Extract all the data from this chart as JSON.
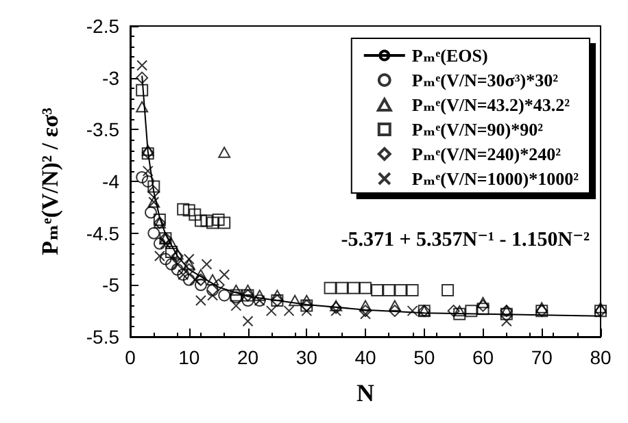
{
  "chart_data": {
    "type": "scatter",
    "xlabel": "N",
    "ylabel": "Pₘᵉ(V/N)² / εσ³",
    "xlim": [
      0,
      80
    ],
    "xticks": [
      0,
      10,
      20,
      30,
      40,
      50,
      60,
      70,
      80
    ],
    "ylim": [
      -5.5,
      -2.5
    ],
    "yticks": [
      -5.5,
      -5,
      -4.5,
      -4,
      -3.5,
      -3,
      -2.5
    ],
    "grid": false,
    "legend": "top right",
    "annotations": [
      "-5.371 + 5.357N⁻¹ - 1.150N⁻²"
    ],
    "series": [
      {
        "name": "Pₘᵉ(EOS)",
        "type": "line",
        "marker": "none",
        "line_style": "solid",
        "color": "#000000",
        "x": [
          2,
          3,
          4,
          5,
          6,
          8,
          10,
          15,
          20,
          30,
          40,
          50,
          60,
          80
        ],
        "values": [
          -2.98,
          -3.71,
          -4.1,
          -4.35,
          -4.51,
          -4.72,
          -4.85,
          -5.02,
          -5.11,
          -5.19,
          -5.24,
          -5.27,
          -5.28,
          -5.3
        ]
      },
      {
        "name": "Pₘᵉ(V/N=30σ³)*30²",
        "marker": "circle",
        "color": "#000000",
        "x": [
          2,
          3,
          3.5,
          4,
          5,
          6,
          7,
          8,
          9,
          10,
          12,
          14,
          16,
          18,
          20,
          22
        ],
        "values": [
          -3.96,
          -4.0,
          -4.3,
          -4.5,
          -4.6,
          -4.75,
          -4.8,
          -4.85,
          -4.9,
          -4.95,
          -5.0,
          -5.05,
          -5.1,
          -5.12,
          -5.15,
          -5.15
        ]
      },
      {
        "name": "Pₘᵉ(V/N=43.2)*43.2²",
        "marker": "triangle",
        "color": "#000000",
        "x": [
          2,
          3,
          4,
          5,
          6,
          7,
          8,
          10,
          12,
          14,
          16,
          18,
          20,
          22,
          25,
          28,
          30,
          35,
          40,
          45,
          50,
          56,
          60,
          64,
          70,
          80
        ],
        "values": [
          -3.28,
          -3.7,
          -4.2,
          -4.4,
          -4.55,
          -4.6,
          -4.7,
          -4.8,
          -4.9,
          -4.95,
          -3.72,
          -5.05,
          -5.05,
          -5.1,
          -5.1,
          -5.15,
          -5.15,
          -5.2,
          -5.2,
          -5.2,
          -5.25,
          -5.25,
          -5.17,
          -5.25,
          -5.22,
          -5.22
        ]
      },
      {
        "name": "Pₘᵉ(V/N=90)*90²",
        "marker": "square",
        "color": "#000000",
        "x": [
          2,
          3,
          4,
          5,
          6,
          7,
          9,
          10,
          11,
          12,
          13,
          14,
          15,
          16,
          18,
          20,
          25,
          30,
          34,
          36,
          38,
          40,
          42,
          44,
          46,
          48,
          50,
          54,
          56,
          58,
          60,
          64,
          70,
          80
        ],
        "values": [
          -3.12,
          -3.73,
          -4.05,
          -4.37,
          -4.55,
          -4.68,
          -4.27,
          -4.28,
          -4.32,
          -4.38,
          -4.38,
          -4.4,
          -4.37,
          -4.4,
          -5.1,
          -5.1,
          -5.15,
          -5.2,
          -5.03,
          -5.03,
          -5.03,
          -5.03,
          -5.05,
          -5.05,
          -5.05,
          -5.05,
          -5.25,
          -5.05,
          -5.28,
          -5.25,
          -5.23,
          -5.28,
          -5.25,
          -5.25
        ]
      },
      {
        "name": "Pₘᵉ(V/N=240)*240²",
        "marker": "diamond",
        "color": "#000000",
        "x": [
          2,
          3,
          4,
          5,
          6,
          8,
          10,
          12,
          15,
          20,
          25,
          30,
          35,
          40,
          45,
          50,
          55,
          60,
          64,
          70,
          80
        ],
        "values": [
          -3.0,
          -3.72,
          -4.1,
          -4.4,
          -4.55,
          -4.72,
          -4.85,
          -4.95,
          -5.0,
          -5.1,
          -5.15,
          -5.2,
          -5.22,
          -5.25,
          -5.25,
          -5.25,
          -5.25,
          -5.2,
          -5.25,
          -5.25,
          -5.25
        ]
      },
      {
        "name": "Pₘᵉ(V/N=1000)*1000²",
        "marker": "cross",
        "color": "#000000",
        "x": [
          2,
          3,
          4,
          5,
          6,
          8,
          9,
          10,
          11,
          12,
          13,
          14,
          16,
          18,
          20,
          22,
          24,
          27,
          30,
          35,
          40,
          48,
          64
        ],
        "values": [
          -2.88,
          -3.9,
          -4.2,
          -4.72,
          -4.6,
          -4.8,
          -4.9,
          -4.75,
          -4.95,
          -5.15,
          -4.8,
          -5.1,
          -4.9,
          -5.2,
          -5.35,
          -5.15,
          -5.25,
          -5.25,
          -5.25,
          -5.25,
          -5.28,
          -5.25,
          -5.35
        ]
      }
    ]
  }
}
